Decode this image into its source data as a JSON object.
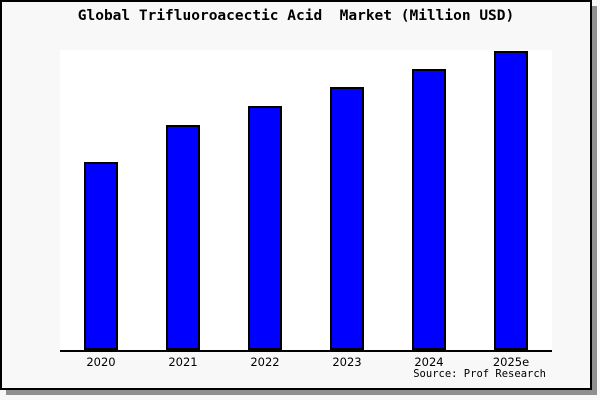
{
  "chart_data": {
    "type": "bar",
    "title": "Global Trifluoroacectic Acid  Market (Million USD)",
    "source": "Source: Prof Research",
    "categories": [
      "2020",
      "2021",
      "2022",
      "2023",
      "2024",
      "2025e"
    ],
    "values": [
      62.9,
      75.3,
      81.6,
      88.0,
      94.0,
      100.0
    ],
    "values_note": "No y-axis scale shown in image; values are relative bar heights normalized to 2025e = 100",
    "xlabel": "",
    "ylabel": "",
    "ylim_relative": [
      0,
      100.3
    ],
    "y_axis_labeled": false,
    "grid": false,
    "legend": false,
    "bar_color": "#0000ff",
    "bar_edge_color": "#000000",
    "plot_bg": "#ffffff",
    "page_bg": "#f8f8f8",
    "border_color": "#000000",
    "shadow_color": "#8f8f8f"
  }
}
